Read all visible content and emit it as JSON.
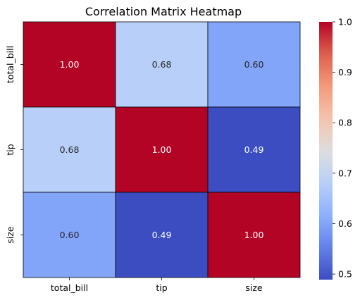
{
  "chart_data": {
    "type": "heatmap",
    "title": "Correlation Matrix Heatmap",
    "xlabel": "",
    "ylabel": "",
    "x_categories": [
      "total_bill",
      "tip",
      "size"
    ],
    "y_categories": [
      "total_bill",
      "tip",
      "size"
    ],
    "values": [
      [
        1.0,
        0.68,
        0.6
      ],
      [
        0.68,
        1.0,
        0.49
      ],
      [
        0.6,
        0.49,
        1.0
      ]
    ],
    "value_format": "0.00",
    "annotated": true,
    "colormap": "coolwarm",
    "color_range": [
      0.489,
      1.0
    ],
    "colorbar": {
      "ticks": [
        0.5,
        0.6,
        0.7,
        0.8,
        0.9,
        1.0
      ],
      "tick_labels": [
        "0.5",
        "0.6",
        "0.7",
        "0.8",
        "0.9",
        "1.0"
      ],
      "placement": "right"
    },
    "cell_border_color": "#000000",
    "grid": false,
    "legend": "none"
  }
}
